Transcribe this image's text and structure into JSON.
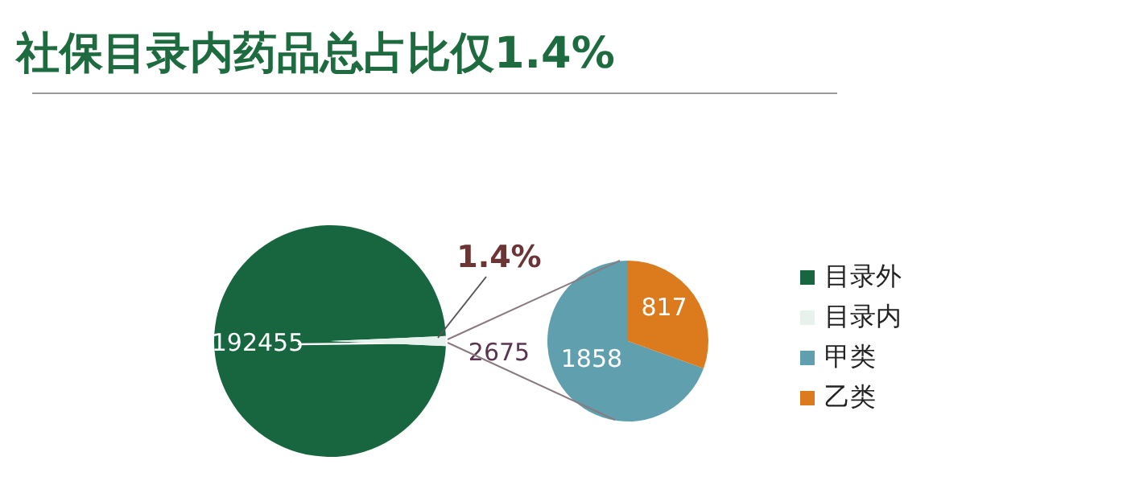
{
  "chart_data": [
    {
      "type": "pie",
      "title": "社保目录内药品总占比仅1.4%",
      "categories": [
        "目录外",
        "目录内"
      ],
      "values": [
        192455,
        2675
      ],
      "colors": [
        "#17663f",
        "#e8f2ec"
      ],
      "data_labels": true,
      "annotations": [
        "1.4%"
      ],
      "legend": "right"
    },
    {
      "type": "pie",
      "categories": [
        "甲类",
        "乙类"
      ],
      "values": [
        1858,
        817
      ],
      "colors": [
        "#5f9fae",
        "#dc7a1e"
      ],
      "data_labels": true,
      "legend": "right"
    }
  ]
}
